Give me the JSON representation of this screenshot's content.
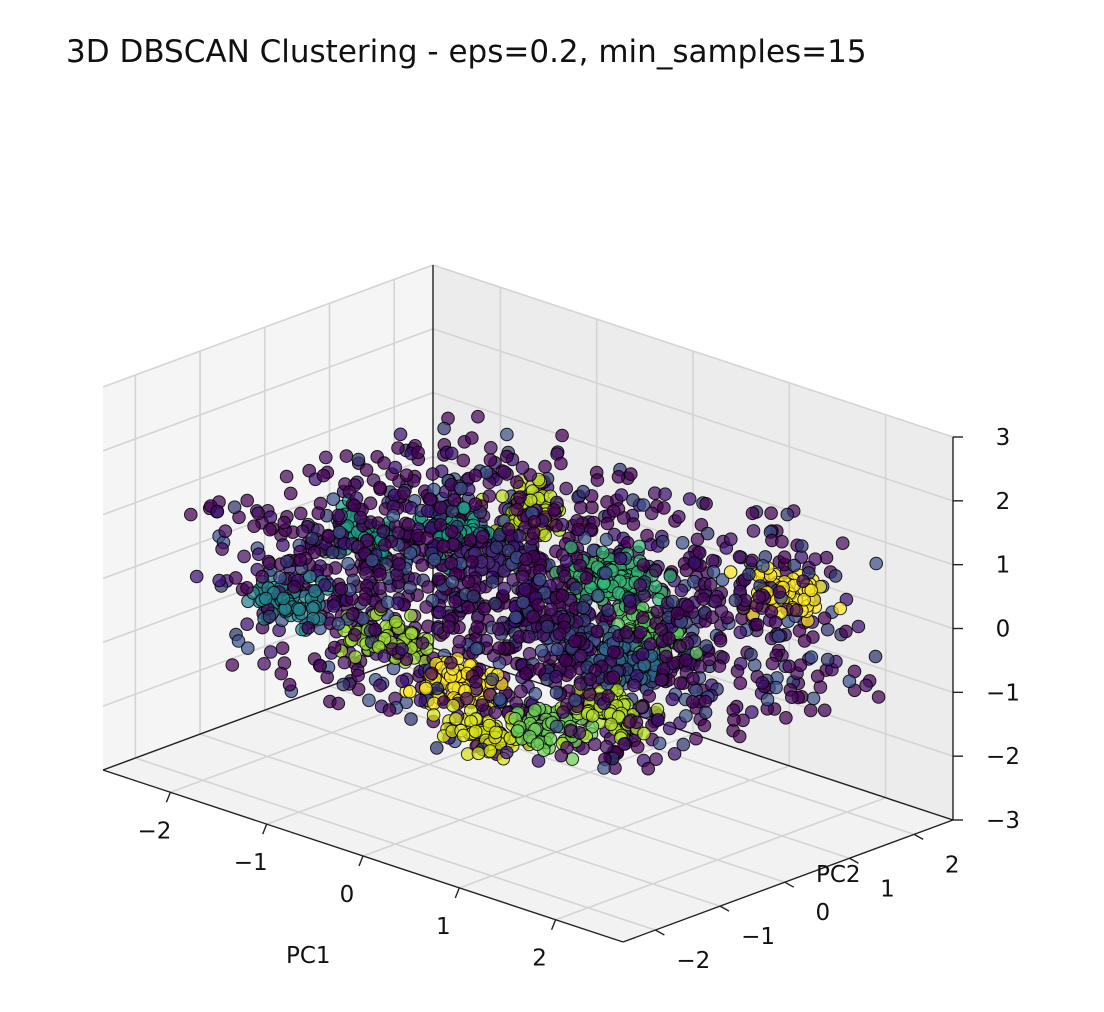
{
  "chart_data": {
    "type": "scatter",
    "projection": "3d",
    "title": "3D DBSCAN Clustering - eps=0.2, min_samples=15",
    "xlabel": "PC1",
    "ylabel": "PC2",
    "zlabel": "",
    "xlim": [
      -2.7,
      2.7
    ],
    "ylim": [
      -2.5,
      2.6
    ],
    "zlim": [
      -3,
      3
    ],
    "x_ticks": [
      "−2",
      "−1",
      "0",
      "1",
      "2"
    ],
    "y_ticks": [
      "−2",
      "−1",
      "0",
      "1",
      "2"
    ],
    "z_ticks": [
      "−3",
      "−2",
      "−1",
      "0",
      "1",
      "2",
      "3"
    ],
    "grid": true,
    "colormap": "viridis",
    "noise_color": "#440154",
    "marker_edge_color": "#000000",
    "point_distribution": {
      "x_range": [
        -2.2,
        2.2
      ],
      "y_range": [
        -2.0,
        2.3
      ],
      "z_range": [
        -1.3,
        1.3
      ],
      "approx_point_count": 2600,
      "noise_fraction": 0.6
    },
    "clusters": [
      {
        "color": "#fde725",
        "center": [
          1.55,
          1.75,
          0.3
        ]
      },
      {
        "color": "#b5de2b",
        "center": [
          1.7,
          -1.2,
          -0.4
        ]
      },
      {
        "color": "#6ece58",
        "center": [
          1.3,
          -1.6,
          -0.7
        ]
      },
      {
        "color": "#35b779",
        "center": [
          0.6,
          0.6,
          0.5
        ]
      },
      {
        "color": "#1f9e89",
        "center": [
          -1.2,
          0.8,
          0.2
        ]
      },
      {
        "color": "#26828e",
        "center": [
          -1.5,
          -1.4,
          -0.2
        ]
      },
      {
        "color": "#a0da39",
        "center": [
          -0.5,
          -1.3,
          -0.3
        ]
      },
      {
        "color": "#fde725",
        "center": [
          0.3,
          -1.5,
          -0.5
        ]
      },
      {
        "color": "#d8e219",
        "center": [
          0.85,
          -1.75,
          -0.9
        ]
      },
      {
        "color": "#3e4989",
        "center": [
          0.7,
          -0.4,
          0.0
        ]
      },
      {
        "color": "#31688e",
        "center": [
          1.2,
          -0.2,
          -0.2
        ]
      },
      {
        "color": "#482878",
        "center": [
          -0.6,
          0.4,
          0.3
        ]
      },
      {
        "color": "#4ac16d",
        "center": [
          0.3,
          0.8,
          0.2
        ]
      },
      {
        "color": "#c2df23",
        "center": [
          -1.0,
          1.6,
          0.4
        ]
      },
      {
        "color": "#1f9e89",
        "center": [
          -1.8,
          0.2,
          0.1
        ]
      },
      {
        "color": "#5ec962",
        "center": [
          1.0,
          0.4,
          -0.1
        ]
      }
    ]
  }
}
